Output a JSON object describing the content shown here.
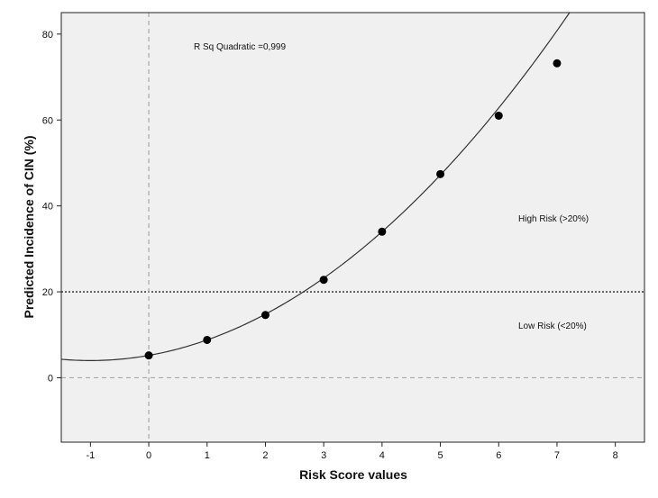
{
  "chart_data": {
    "type": "scatter",
    "xlabel": "Risk Score values",
    "ylabel": "Predicted Incidence of CIN (%)",
    "xlim": [
      -1.5,
      8.5
    ],
    "ylim": [
      -15,
      85
    ],
    "x_ticks": [
      -1,
      0,
      1,
      2,
      3,
      4,
      5,
      6,
      7,
      8
    ],
    "y_ticks": [
      0,
      20,
      40,
      60,
      80
    ],
    "grid": false,
    "series": [
      {
        "x": [
          0,
          1,
          2,
          3,
          4,
          5,
          6,
          7
        ],
        "y": [
          5.2,
          8.8,
          14.6,
          22.8,
          34.0,
          47.4,
          61.0,
          73.2
        ]
      }
    ],
    "fit_curve": {
      "model": "quadratic",
      "coefficients": {
        "a": 1.2,
        "b": 2.4,
        "c": 5.2
      },
      "x_range": [
        -1.5,
        7.25
      ]
    },
    "reference_lines": [
      {
        "axis": "y",
        "value": 20,
        "style": "dotted"
      },
      {
        "axis": "y",
        "value": 0,
        "style": "dashed"
      },
      {
        "axis": "x",
        "value": 0,
        "style": "dashed"
      }
    ],
    "annotations": [
      {
        "text": "R Sq Quadratic =0,999"
      },
      {
        "text": "High Risk (>20%)"
      },
      {
        "text": "Low Risk (<20%)"
      }
    ]
  }
}
